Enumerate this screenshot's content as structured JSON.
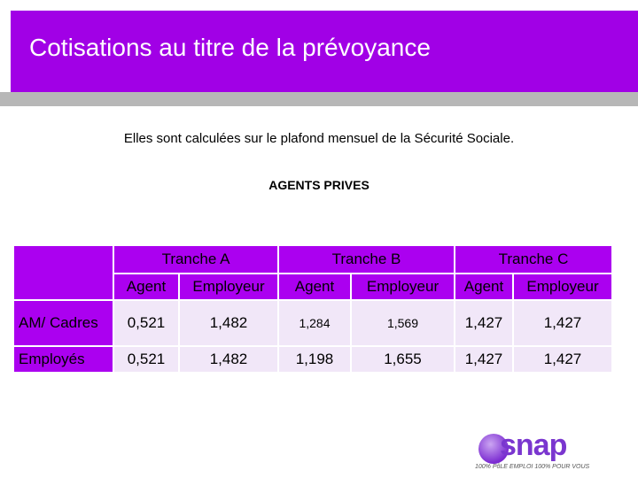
{
  "header": {
    "title": "Cotisations au titre de la prévoyance"
  },
  "intro": "Elles sont calculées sur le plafond mensuel de la Sécurité Sociale.",
  "section_title": "AGENTS PRIVES",
  "table": {
    "tranches": [
      "Tranche A",
      "Tranche B",
      "Tranche C"
    ],
    "subheaders": [
      "Agent",
      "Employeur",
      "Agent",
      "Employeur",
      "Agent",
      "Employeur"
    ],
    "rows": [
      {
        "label": "AM/ Cadres",
        "values": [
          "0,521",
          "1,482",
          "1,284",
          "1,569",
          "1,427",
          "1,427"
        ]
      },
      {
        "label": "Employés",
        "values": [
          "0,521",
          "1,482",
          "1,198",
          "1,655",
          "1,427",
          "1,427"
        ]
      }
    ]
  },
  "logo": {
    "text": "snap",
    "tagline": "100% PôLE EMPLOI 100% POUR VOUS"
  },
  "colors": {
    "accent": "#a100e6",
    "cell": "#f1e7f8",
    "bar": "#b7b7b7"
  }
}
